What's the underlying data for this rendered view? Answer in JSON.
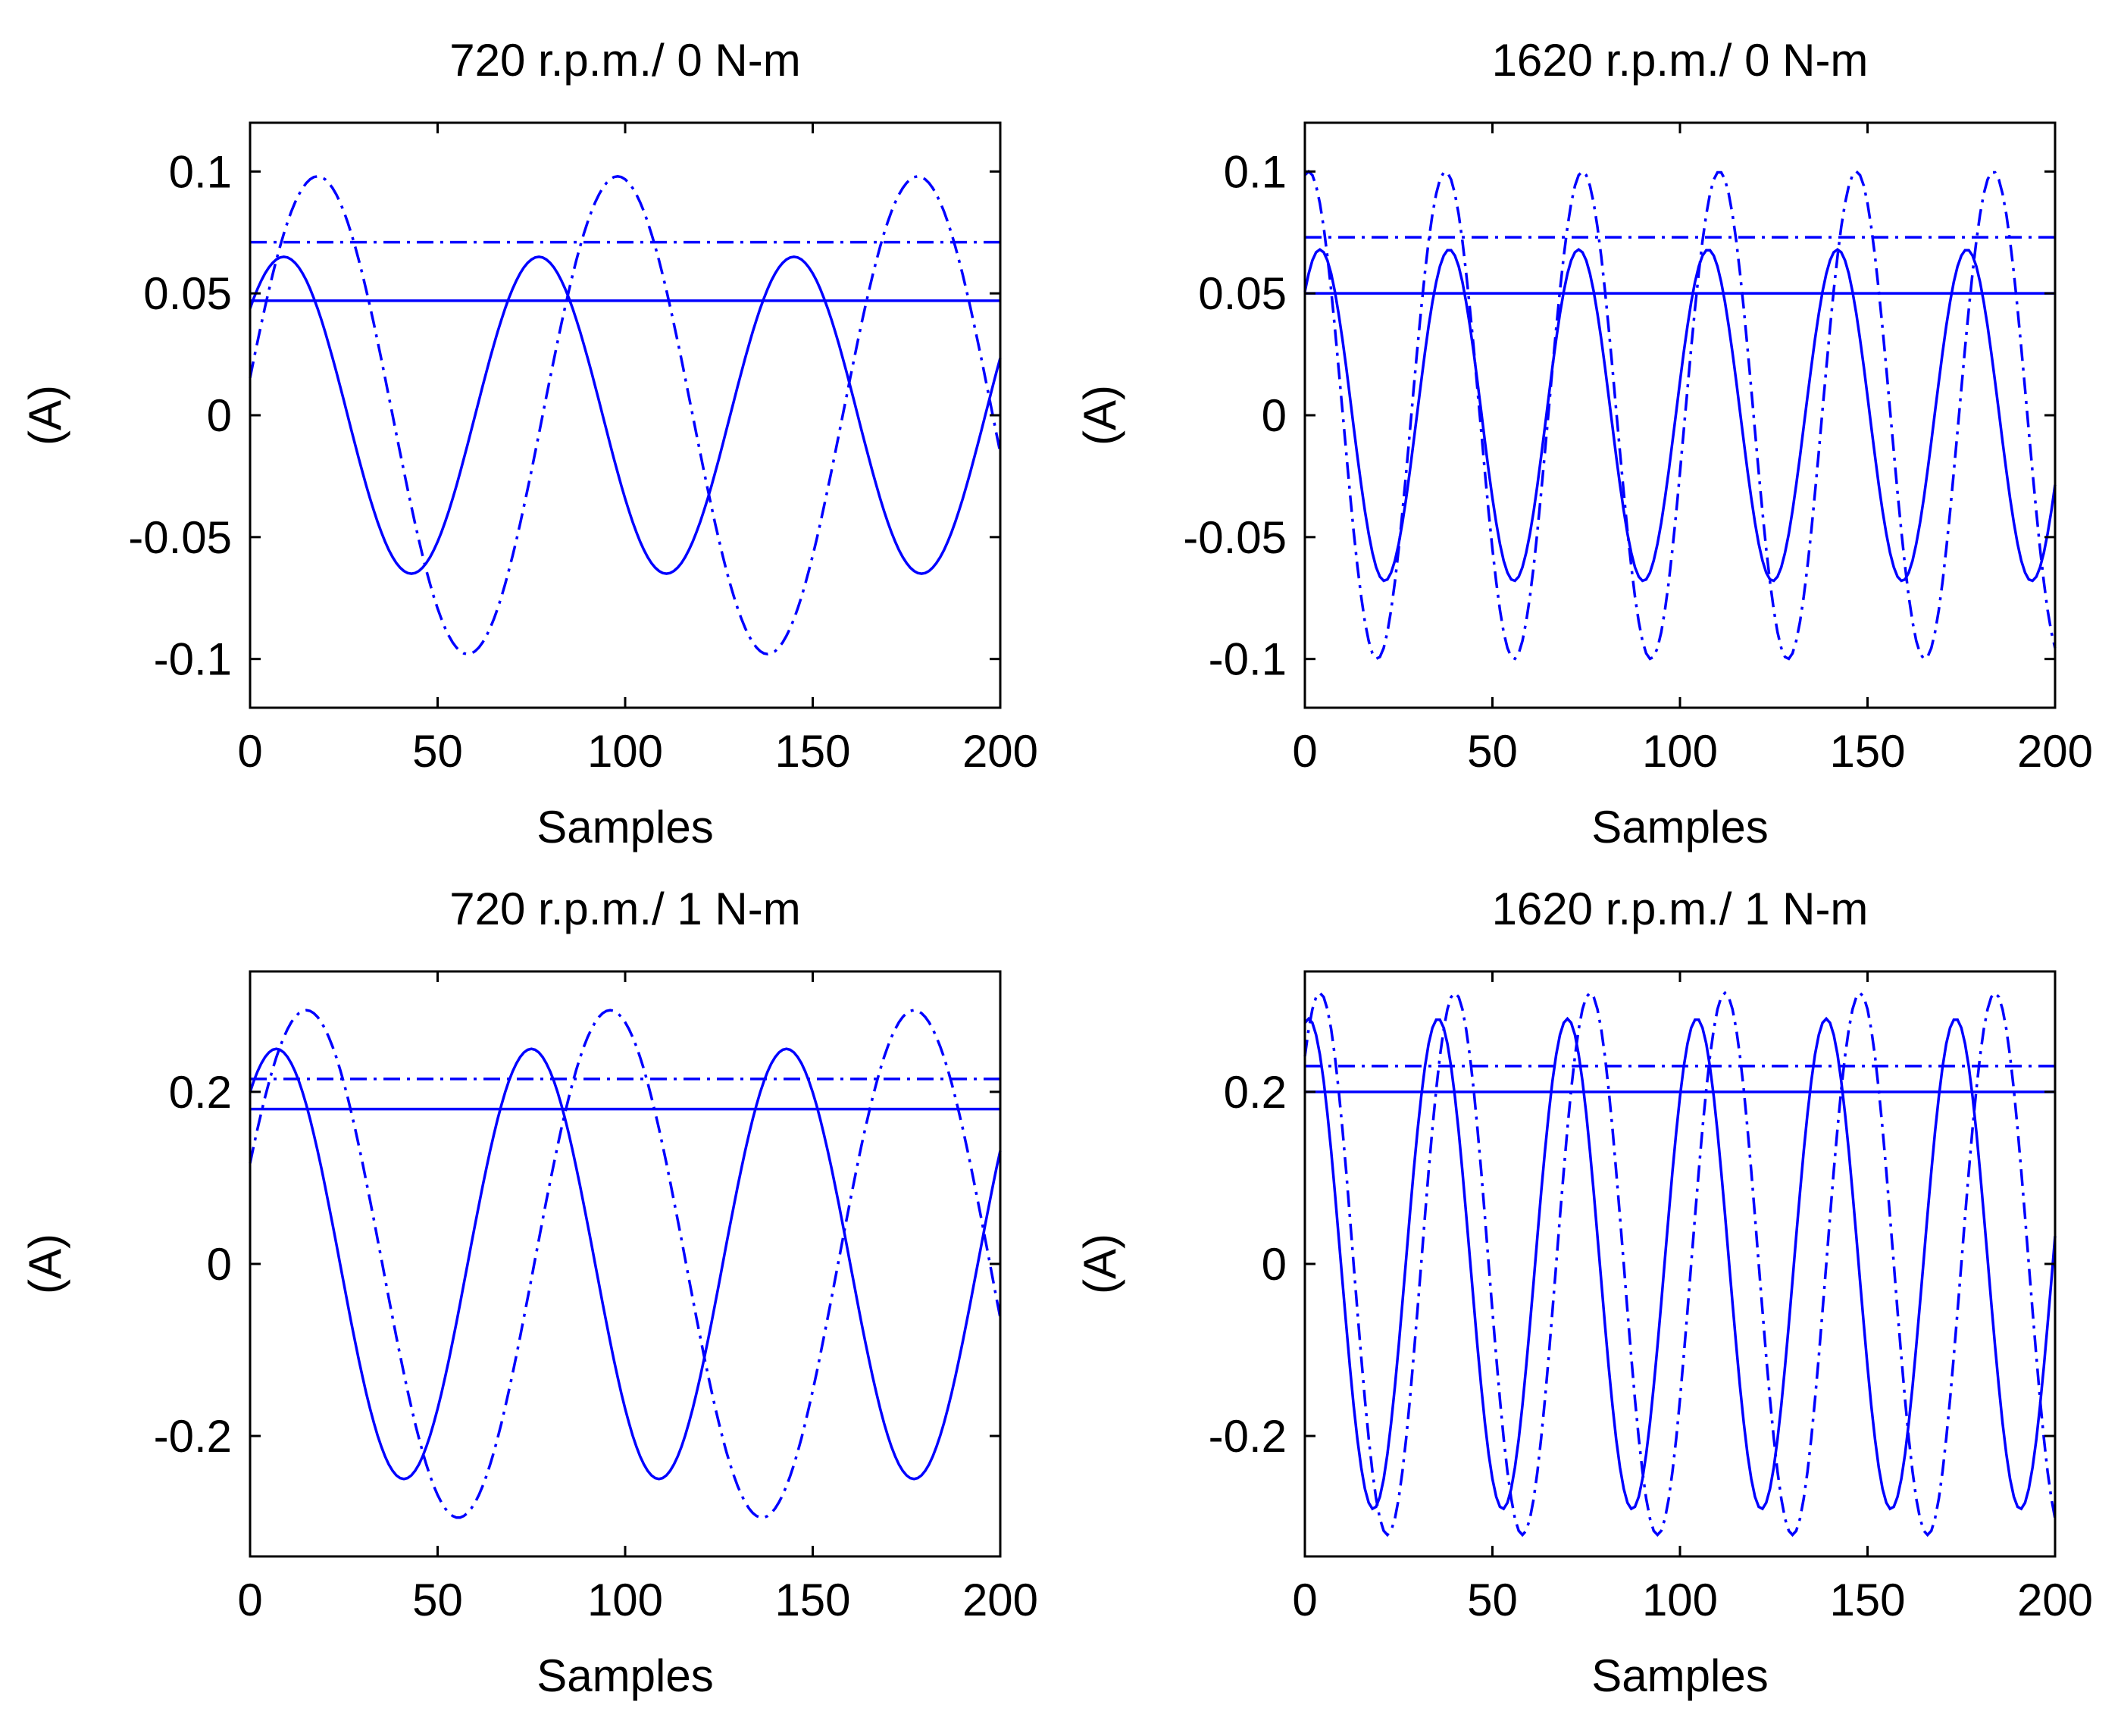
{
  "chart_data": [
    {
      "type": "line",
      "title": "720 r.p.m./ 0 N-m",
      "xlabel": "Samples",
      "ylabel": "(A)",
      "xlim": [
        0,
        200
      ],
      "ylim": [
        -0.12,
        0.12
      ],
      "xticks": [
        0,
        50,
        100,
        150,
        200
      ],
      "xtick_labels": [
        "0",
        "50",
        "100",
        "150",
        "200"
      ],
      "yticks": [
        -0.1,
        -0.05,
        0,
        0.05,
        0.1
      ],
      "ytick_labels": [
        "-0.1",
        "-0.05",
        "0",
        "0.05",
        "0.1"
      ],
      "series": [
        {
          "name": "solid current",
          "style": "solid",
          "shape": "sine",
          "amplitude": 0.065,
          "period": 68,
          "phase_sample": -9,
          "n_samples": 200
        },
        {
          "name": "dash-dot current",
          "style": "dashdot",
          "shape": "sine",
          "amplitude": 0.098,
          "period": 80,
          "phase_sample": -18,
          "n_samples": 200
        },
        {
          "name": "solid RMS",
          "style": "solid",
          "shape": "constant",
          "value": 0.047
        },
        {
          "name": "dash-dot RMS",
          "style": "dashdot",
          "shape": "constant",
          "value": 0.071
        }
      ]
    },
    {
      "type": "line",
      "title": "1620 r.p.m./ 0 N-m",
      "xlabel": "Samples",
      "ylabel": "(A)",
      "xlim": [
        0,
        200
      ],
      "ylim": [
        -0.12,
        0.12
      ],
      "xticks": [
        0,
        50,
        100,
        150,
        200
      ],
      "xtick_labels": [
        "0",
        "50",
        "100",
        "150",
        "200"
      ],
      "yticks": [
        -0.1,
        -0.05,
        0,
        0.05,
        0.1
      ],
      "ytick_labels": [
        "-0.1",
        "-0.05",
        "0",
        "0.05",
        "0.1"
      ],
      "series": [
        {
          "name": "solid current",
          "style": "solid",
          "shape": "sine",
          "amplitude": 0.068,
          "period": 34.5,
          "phase_sample": -4,
          "n_samples": 200
        },
        {
          "name": "dash-dot current",
          "style": "dashdot",
          "shape": "sine",
          "amplitude": 0.1,
          "period": 36.5,
          "phase_sample": -1,
          "n_samples": 200
        },
        {
          "name": "solid RMS",
          "style": "solid",
          "shape": "constant",
          "value": 0.05
        },
        {
          "name": "dash-dot RMS",
          "style": "dashdot",
          "shape": "constant",
          "value": 0.073
        }
      ]
    },
    {
      "type": "line",
      "title": "720 r.p.m./ 1 N-m",
      "xlabel": "Samples",
      "ylabel": "(A)",
      "xlim": [
        0,
        200
      ],
      "ylim": [
        -0.34,
        0.34
      ],
      "xticks": [
        0,
        50,
        100,
        150,
        200
      ],
      "xtick_labels": [
        "0",
        "50",
        "100",
        "150",
        "200"
      ],
      "yticks": [
        -0.2,
        0,
        0.2
      ],
      "ytick_labels": [
        "-0.2",
        "0",
        "0.2"
      ],
      "series": [
        {
          "name": "solid current",
          "style": "solid",
          "shape": "sine",
          "amplitude": 0.25,
          "period": 68,
          "phase_sample": -7,
          "n_samples": 200
        },
        {
          "name": "dash-dot current",
          "style": "dashdot",
          "shape": "sine",
          "amplitude": 0.295,
          "period": 81,
          "phase_sample": -15,
          "n_samples": 200
        },
        {
          "name": "solid RMS",
          "style": "solid",
          "shape": "constant",
          "value": 0.18
        },
        {
          "name": "dash-dot RMS",
          "style": "dashdot",
          "shape": "constant",
          "value": 0.215
        }
      ]
    },
    {
      "type": "line",
      "title": "1620 r.p.m./ 1 N-m",
      "xlabel": "Samples",
      "ylabel": "(A)",
      "xlim": [
        0,
        200
      ],
      "ylim": [
        -0.34,
        0.34
      ],
      "xticks": [
        0,
        50,
        100,
        150,
        200
      ],
      "xtick_labels": [
        "0",
        "50",
        "100",
        "150",
        "200"
      ],
      "yticks": [
        -0.2,
        0,
        0.2
      ],
      "ytick_labels": [
        "-0.2",
        "0",
        "0.2"
      ],
      "series": [
        {
          "name": "solid current",
          "style": "solid",
          "shape": "sine",
          "amplitude": 0.285,
          "period": 34.5,
          "phase_sample": -1,
          "n_samples": 200
        },
        {
          "name": "dash-dot current",
          "style": "dashdot",
          "shape": "sine",
          "amplitude": 0.315,
          "period": 36,
          "phase_sample": -4,
          "n_samples": 200
        },
        {
          "name": "solid RMS",
          "style": "solid",
          "shape": "constant",
          "value": 0.2
        },
        {
          "name": "dash-dot RMS",
          "style": "dashdot",
          "shape": "constant",
          "value": 0.23
        }
      ]
    }
  ],
  "colors": {
    "line": "#0000ff",
    "axes": "#000000",
    "background": "#ffffff"
  }
}
